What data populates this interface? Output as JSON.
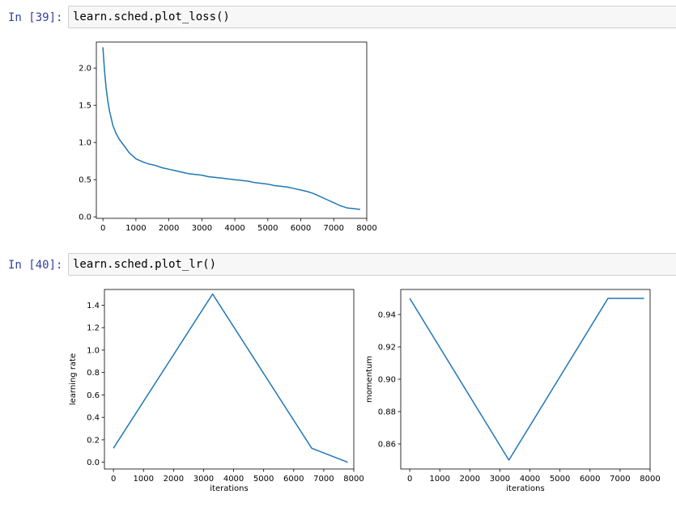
{
  "cells": [
    {
      "prompt": "In [39]:",
      "code": "learn.sched.plot_loss()"
    },
    {
      "prompt": "In [40]:",
      "code": "learn.sched.plot_lr()"
    }
  ],
  "line_color": "#1f77b4",
  "chart_data": [
    {
      "type": "line",
      "xlabel": "",
      "ylabel": "",
      "xlim": [
        -200,
        8000
      ],
      "ylim": [
        -0.02,
        2.35
      ],
      "xticks": [
        0,
        1000,
        2000,
        3000,
        4000,
        5000,
        6000,
        7000,
        8000
      ],
      "xtick_labels": [
        "0",
        "1000",
        "2000",
        "3000",
        "4000",
        "5000",
        "6000",
        "7000",
        "8000"
      ],
      "yticks": [
        0.0,
        0.5,
        1.0,
        1.5,
        2.0
      ],
      "ytick_labels": [
        "0.0",
        "0.5",
        "1.0",
        "1.5",
        "2.0"
      ],
      "grid": false,
      "series": [
        {
          "x": [
            0,
            50,
            100,
            150,
            200,
            250,
            300,
            400,
            500,
            600,
            700,
            800,
            900,
            1000,
            1200,
            1400,
            1600,
            1800,
            2000,
            2200,
            2400,
            2600,
            2800,
            3000,
            3200,
            3400,
            3600,
            3800,
            4000,
            4200,
            4400,
            4600,
            4800,
            5000,
            5200,
            5400,
            5600,
            5800,
            6000,
            6200,
            6400,
            6600,
            6800,
            7000,
            7200,
            7400,
            7600,
            7800
          ],
          "y": [
            2.28,
            1.95,
            1.72,
            1.55,
            1.42,
            1.33,
            1.23,
            1.12,
            1.04,
            0.98,
            0.92,
            0.86,
            0.82,
            0.78,
            0.74,
            0.71,
            0.69,
            0.66,
            0.64,
            0.62,
            0.6,
            0.58,
            0.57,
            0.56,
            0.54,
            0.53,
            0.52,
            0.51,
            0.5,
            0.49,
            0.48,
            0.46,
            0.45,
            0.44,
            0.42,
            0.41,
            0.4,
            0.38,
            0.36,
            0.34,
            0.31,
            0.27,
            0.23,
            0.19,
            0.15,
            0.12,
            0.11,
            0.1
          ]
        }
      ]
    },
    {
      "type": "line",
      "xlabel": "iterations",
      "ylabel": "learning rate",
      "xlim": [
        -300,
        8000
      ],
      "ylim": [
        -0.06,
        1.54
      ],
      "xticks": [
        0,
        1000,
        2000,
        3000,
        4000,
        5000,
        6000,
        7000,
        8000
      ],
      "xtick_labels": [
        "0",
        "1000",
        "2000",
        "3000",
        "4000",
        "5000",
        "6000",
        "7000",
        "8000"
      ],
      "yticks": [
        0.0,
        0.2,
        0.4,
        0.6,
        0.8,
        1.0,
        1.2,
        1.4
      ],
      "ytick_labels": [
        "0.0",
        "0.2",
        "0.4",
        "0.6",
        "0.8",
        "1.0",
        "1.2",
        "1.4"
      ],
      "grid": false,
      "series": [
        {
          "x": [
            0,
            3300,
            6600,
            7800
          ],
          "y": [
            0.125,
            1.5,
            0.125,
            0.0
          ]
        }
      ]
    },
    {
      "type": "line",
      "xlabel": "iterations",
      "ylabel": "momentum",
      "xlim": [
        -300,
        8000
      ],
      "ylim": [
        0.8445,
        0.9555
      ],
      "xticks": [
        0,
        1000,
        2000,
        3000,
        4000,
        5000,
        6000,
        7000,
        8000
      ],
      "xtick_labels": [
        "0",
        "1000",
        "2000",
        "3000",
        "4000",
        "5000",
        "6000",
        "7000",
        "8000"
      ],
      "yticks": [
        0.86,
        0.88,
        0.9,
        0.92,
        0.94
      ],
      "ytick_labels": [
        "0.86",
        "0.88",
        "0.90",
        "0.92",
        "0.94"
      ],
      "grid": false,
      "series": [
        {
          "x": [
            0,
            3300,
            6600,
            7800
          ],
          "y": [
            0.95,
            0.85,
            0.95,
            0.95
          ]
        }
      ]
    }
  ]
}
